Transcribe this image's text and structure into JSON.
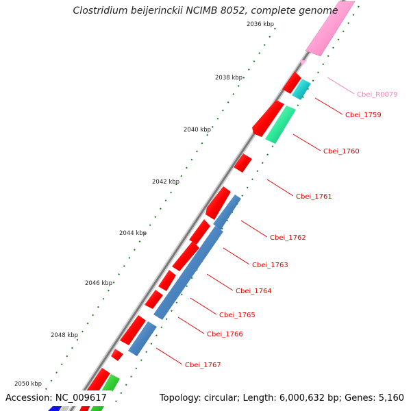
{
  "title": "Clostridium beijerinckii NCIMB 8052, complete genome",
  "footer": {
    "accession": "Accession: NC_009617",
    "topology": "Topology: circular; Length: 6,000,632 bp; Genes: 5,160"
  },
  "ruler": {
    "tick_labels": [
      "2036 kbp",
      "2038 kbp",
      "2040 kbp",
      "2042 kbp",
      "2044 kbp",
      "2046 kbp",
      "2048 kbp",
      "2050 kbp"
    ]
  },
  "gene_labels": [
    {
      "id": "Cbei_R0079",
      "color": "#f080b8"
    },
    {
      "id": "Cbei_1759",
      "color": "#dd0000"
    },
    {
      "id": "Cbei_1760",
      "color": "#dd0000"
    },
    {
      "id": "Cbei_1761",
      "color": "#dd0000"
    },
    {
      "id": "Cbei_1762",
      "color": "#dd0000"
    },
    {
      "id": "Cbei_1763",
      "color": "#dd0000"
    },
    {
      "id": "Cbei_1764",
      "color": "#dd0000"
    },
    {
      "id": "Cbei_1765",
      "color": "#dd0000"
    },
    {
      "id": "Cbei_1766",
      "color": "#dd0000"
    },
    {
      "id": "Cbei_1767",
      "color": "#dd0000"
    }
  ],
  "colors": {
    "cds_red": "#ff1a1a",
    "rna_pink": "#ff9ed2",
    "cyan": "#22cccc",
    "green": "#2ee89a",
    "steelblue": "#4f88c0",
    "backbone": "#8a8a8a",
    "tick_green": "#1a7a1a"
  }
}
